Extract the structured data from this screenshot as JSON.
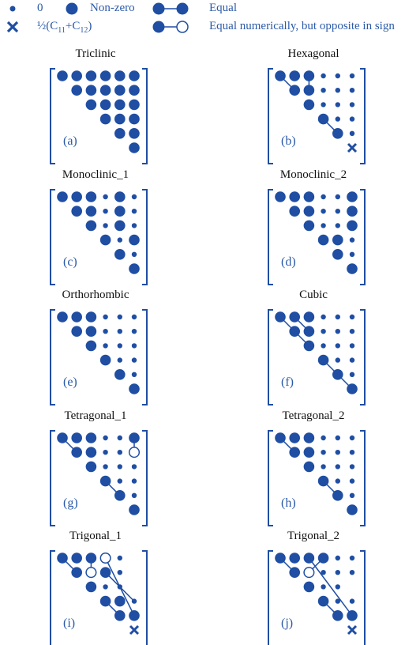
{
  "colors": {
    "primary": "#1f4ea3",
    "bracket": "#1f4ea3",
    "title": "#111111"
  },
  "legend": {
    "zero_label": "0",
    "nonzero_label": "Non-zero",
    "equal_label": "Equal",
    "half_label_prefix": "½(C",
    "half_sub1": "11",
    "half_mid": "+C",
    "half_sub2": "12",
    "half_suffix": ")",
    "opposite_label": "Equal numerically, but opposite in sign"
  },
  "panels": [
    {
      "id": "triclinic",
      "title": "Triclinic",
      "tag": "(a)",
      "rows": [
        "NNNNNN",
        "NNNNN",
        "NNNN",
        "NNN",
        "NN",
        "N"
      ],
      "links": []
    },
    {
      "id": "hexagonal",
      "title": "Hexagonal",
      "tag": "(b)",
      "rows": [
        "NNN000",
        "NN000",
        "N000",
        "N00",
        "N0",
        "X"
      ],
      "links": [
        {
          "from": [
            0,
            0
          ],
          "to": [
            1,
            1
          ],
          "style": "equal"
        },
        {
          "from": [
            0,
            2
          ],
          "to": [
            1,
            2
          ],
          "style": "equal"
        },
        {
          "from": [
            3,
            3
          ],
          "to": [
            4,
            4
          ],
          "style": "equal"
        }
      ]
    },
    {
      "id": "monoclinic_1",
      "title": "Monoclinic_1",
      "tag": "(c)",
      "rows": [
        "NNN0N0",
        "NN0N0",
        "N0N0",
        "N0N",
        "N0",
        "N"
      ],
      "links": []
    },
    {
      "id": "monoclinic_2",
      "title": "Monoclinic_2",
      "tag": "(d)",
      "rows": [
        "NNN00N",
        "NN00N",
        "N00N",
        "NN0",
        "N0",
        "N"
      ],
      "links": []
    },
    {
      "id": "orthorhombic",
      "title": "Orthorhombic",
      "tag": "(e)",
      "rows": [
        "NNN000",
        "NN000",
        "N000",
        "N00",
        "N0",
        "N"
      ],
      "links": []
    },
    {
      "id": "cubic",
      "title": "Cubic",
      "tag": "(f)",
      "rows": [
        "NNN000",
        "NN000",
        "N000",
        "N00",
        "N0",
        "N"
      ],
      "links": [
        {
          "from": [
            0,
            0
          ],
          "to": [
            2,
            2
          ],
          "style": "equal"
        },
        {
          "from": [
            0,
            1
          ],
          "to": [
            1,
            2
          ],
          "style": "equal"
        },
        {
          "from": [
            3,
            3
          ],
          "to": [
            5,
            5
          ],
          "style": "equal"
        }
      ]
    },
    {
      "id": "tetragonal_1",
      "title": "Tetragonal_1",
      "tag": "(g)",
      "rows": [
        "NNN00N",
        "NN00O",
        "N000",
        "N00",
        "N0",
        "N"
      ],
      "links": [
        {
          "from": [
            0,
            0
          ],
          "to": [
            1,
            1
          ],
          "style": "equal"
        },
        {
          "from": [
            0,
            5
          ],
          "to": [
            1,
            5
          ],
          "style": "opposite"
        },
        {
          "from": [
            3,
            3
          ],
          "to": [
            4,
            4
          ],
          "style": "equal"
        }
      ]
    },
    {
      "id": "tetragonal_2",
      "title": "Tetragonal_2",
      "tag": "(h)",
      "rows": [
        "NNN000",
        "NN000",
        "N000",
        "N00",
        "N0",
        "N"
      ],
      "links": [
        {
          "from": [
            0,
            0
          ],
          "to": [
            1,
            1
          ],
          "style": "equal"
        },
        {
          "from": [
            3,
            3
          ],
          "to": [
            4,
            4
          ],
          "style": "equal"
        }
      ]
    },
    {
      "id": "trigonal_1",
      "title": "Trigonal_1",
      "tag": "(i)",
      "rows": [
        "NNNO0",
        "NON0",
        "N00",
        "NN0",
        "NN",
        "X"
      ],
      "links": [
        {
          "from": [
            0,
            0
          ],
          "to": [
            1,
            1
          ],
          "style": "equal"
        },
        {
          "from": [
            0,
            2
          ],
          "to": [
            1,
            2
          ],
          "style": "opposite"
        },
        {
          "from": [
            0,
            3
          ],
          "to": [
            4,
            5
          ],
          "style": "opposite"
        },
        {
          "from": [
            1,
            3
          ],
          "to": [
            3,
            5
          ],
          "style": "equal"
        },
        {
          "from": [
            3,
            3
          ],
          "to": [
            4,
            4
          ],
          "style": "equal"
        }
      ]
    },
    {
      "id": "trigonal_2",
      "title": "Trigonal_2",
      "tag": "(j)",
      "rows": [
        "NNNN00",
        "NO000",
        "N00",
        "N00",
        "NN",
        "X"
      ],
      "links": [
        {
          "from": [
            0,
            0
          ],
          "to": [
            1,
            1
          ],
          "style": "equal"
        },
        {
          "from": [
            0,
            3
          ],
          "to": [
            1,
            2
          ],
          "style": "opposite"
        },
        {
          "from": [
            0,
            2
          ],
          "to": [
            4,
            5
          ],
          "style": "equal"
        },
        {
          "from": [
            3,
            3
          ],
          "to": [
            4,
            4
          ],
          "style": "equal"
        }
      ]
    }
  ]
}
